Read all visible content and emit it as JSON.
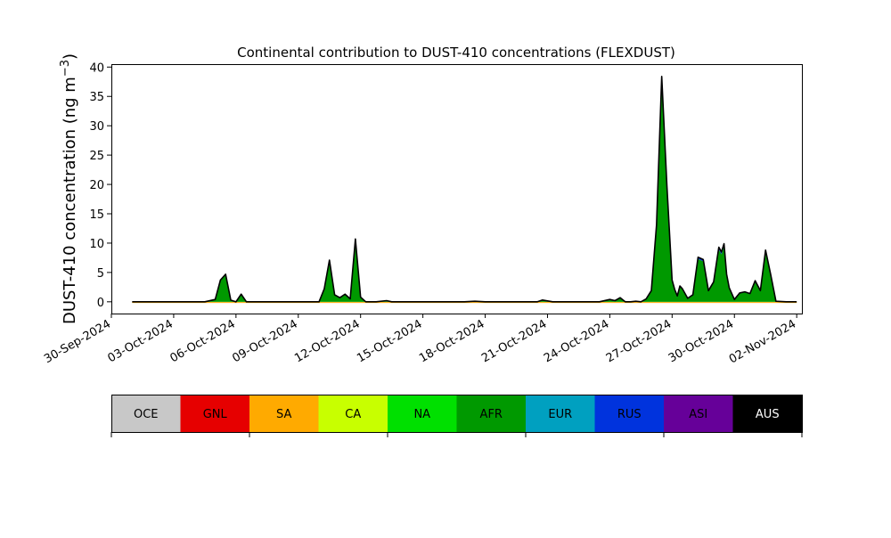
{
  "chart_data": {
    "type": "area",
    "title": "Continental contribution to DUST-410 concentrations (FLEXDUST)",
    "xlabel": "",
    "ylabel": "DUST-410 concentration (ng m",
    "ylabel_superscript": "−3",
    "ylabel_close": ")",
    "xlim": [
      "2024-09-30T00:00",
      "2024-11-02T06:00"
    ],
    "ylim": [
      -2,
      40.5
    ],
    "x_ticks": [
      "30-Sep-2024",
      "03-Oct-2024",
      "06-Oct-2024",
      "09-Oct-2024",
      "12-Oct-2024",
      "15-Oct-2024",
      "18-Oct-2024",
      "21-Oct-2024",
      "24-Oct-2024",
      "27-Oct-2024",
      "30-Oct-2024",
      "02-Nov-2024"
    ],
    "y_ticks": [
      0,
      5,
      10,
      15,
      20,
      25,
      30,
      35,
      40
    ],
    "grid": false,
    "legend": {
      "placement": "below",
      "entries": [
        {
          "label": "OCE",
          "color": "#c8c8c8",
          "text_color": "#000000"
        },
        {
          "label": "GNL",
          "color": "#e60000",
          "text_color": "#000000"
        },
        {
          "label": "SA",
          "color": "#ffaa00",
          "text_color": "#000000"
        },
        {
          "label": "CA",
          "color": "#c8ff00",
          "text_color": "#000000"
        },
        {
          "label": "NA",
          "color": "#00e000",
          "text_color": "#000000"
        },
        {
          "label": "AFR",
          "color": "#009900",
          "text_color": "#000000"
        },
        {
          "label": "EUR",
          "color": "#00a0c0",
          "text_color": "#000000"
        },
        {
          "label": "RUS",
          "color": "#0033dd",
          "text_color": "#000000"
        },
        {
          "label": "ASI",
          "color": "#660099",
          "text_color": "#000000"
        },
        {
          "label": "AUS",
          "color": "#000000",
          "text_color": "#ffffff"
        }
      ]
    },
    "x": [
      "2024-10-01T00:00",
      "2024-10-04T12:00",
      "2024-10-05T00:00",
      "2024-10-05T06:00",
      "2024-10-05T12:00",
      "2024-10-05T18:00",
      "2024-10-06T00:00",
      "2024-10-06T06:00",
      "2024-10-06T12:00",
      "2024-10-06T18:00",
      "2024-10-07T00:00",
      "2024-10-10T00:00",
      "2024-10-10T06:00",
      "2024-10-10T12:00",
      "2024-10-10T18:00",
      "2024-10-11T00:00",
      "2024-10-11T06:00",
      "2024-10-11T12:00",
      "2024-10-11T18:00",
      "2024-10-12T00:00",
      "2024-10-12T06:00",
      "2024-10-12T12:00",
      "2024-10-12T18:00",
      "2024-10-13T06:00",
      "2024-10-13T12:00",
      "2024-10-14T00:00",
      "2024-10-17T00:00",
      "2024-10-17T12:00",
      "2024-10-18T00:00",
      "2024-10-20T12:00",
      "2024-10-20T18:00",
      "2024-10-21T06:00",
      "2024-10-21T18:00",
      "2024-10-22T06:00",
      "2024-10-22T18:00",
      "2024-10-23T12:00",
      "2024-10-24T00:00",
      "2024-10-24T06:00",
      "2024-10-24T12:00",
      "2024-10-24T18:00",
      "2024-10-25T00:00",
      "2024-10-25T06:00",
      "2024-10-25T12:00",
      "2024-10-25T18:00",
      "2024-10-26T00:00",
      "2024-10-26T06:00",
      "2024-10-26T12:00",
      "2024-10-26T18:00",
      "2024-10-27T00:00",
      "2024-10-27T03:00",
      "2024-10-27T06:00",
      "2024-10-27T09:00",
      "2024-10-27T12:00",
      "2024-10-27T18:00",
      "2024-10-28T00:00",
      "2024-10-28T06:00",
      "2024-10-28T12:00",
      "2024-10-28T18:00",
      "2024-10-29T00:00",
      "2024-10-29T06:00",
      "2024-10-29T09:00",
      "2024-10-29T12:00",
      "2024-10-29T15:00",
      "2024-10-29T18:00",
      "2024-10-30T00:00",
      "2024-10-30T06:00",
      "2024-10-30T12:00",
      "2024-10-30T18:00",
      "2024-10-31T00:00",
      "2024-10-31T06:00",
      "2024-10-31T12:00",
      "2024-10-31T18:00",
      "2024-11-01T00:00",
      "2024-11-01T12:00",
      "2024-11-02T00:00"
    ],
    "series": [
      {
        "color": "#c8c8c8",
        "values": [
          0,
          0,
          0,
          0,
          0,
          0,
          0,
          0,
          0,
          0,
          0,
          0,
          0,
          0,
          0,
          0,
          0,
          0,
          0,
          0,
          0,
          0,
          0,
          0,
          0,
          0,
          0,
          0,
          0,
          0,
          0,
          0,
          0,
          0,
          0,
          0,
          0,
          0,
          0,
          0,
          0,
          0,
          0,
          0,
          0,
          0,
          0,
          0,
          0,
          0,
          0,
          0,
          0,
          0,
          0,
          0,
          0,
          0,
          0,
          0,
          0,
          0,
          0,
          0,
          0,
          0,
          0,
          0,
          0,
          0,
          0,
          0,
          0,
          0,
          0
        ]
      },
      {
        "color": "#e60000",
        "values": [
          0,
          0,
          0,
          0,
          0,
          0,
          0,
          0,
          0,
          0,
          0,
          0,
          0,
          0,
          0,
          0,
          0,
          0,
          0,
          0,
          0,
          0,
          0,
          0,
          0,
          0,
          0,
          0,
          0,
          0,
          0,
          0,
          0,
          0,
          0,
          0,
          0,
          0,
          0,
          0,
          0,
          0,
          0,
          0,
          0,
          0,
          0,
          0,
          0,
          0,
          0,
          0,
          0,
          0,
          0,
          0,
          0,
          0,
          0,
          0,
          0,
          0,
          0,
          0,
          0,
          0,
          0,
          0,
          0,
          0,
          0,
          0,
          0,
          0,
          0
        ]
      },
      {
        "color": "#ffaa00",
        "values": [
          0,
          0,
          0,
          0,
          0,
          0,
          0,
          0,
          0,
          0,
          0,
          0,
          0,
          0,
          0,
          0,
          0,
          0,
          0,
          0,
          0,
          0,
          0,
          0,
          0,
          0,
          0,
          0,
          0,
          0,
          0,
          0,
          0,
          0,
          0,
          0,
          0,
          0,
          0,
          0,
          0,
          0,
          0,
          0,
          0,
          0,
          0,
          0,
          0,
          0,
          0,
          0,
          0,
          0,
          0,
          0,
          0,
          0,
          0,
          0,
          0,
          0,
          0,
          0,
          0,
          0,
          0,
          0,
          0,
          0,
          0,
          0,
          0,
          0,
          0
        ]
      },
      {
        "color": "#c8ff00",
        "values": [
          0,
          0,
          0,
          0,
          0,
          0,
          0,
          0,
          0,
          0,
          0,
          0,
          0,
          0,
          0,
          0,
          0,
          0,
          0,
          0,
          0,
          0,
          0,
          0,
          0,
          0,
          0,
          0,
          0,
          0,
          0,
          0,
          0,
          0,
          0,
          0,
          0,
          0,
          0,
          0,
          0,
          0,
          0,
          0,
          0,
          0,
          0,
          0,
          0,
          0,
          0,
          0,
          0,
          0,
          0,
          0,
          0,
          0,
          0,
          0,
          0,
          0,
          0,
          0,
          0,
          0,
          0,
          0,
          0,
          0,
          0,
          0,
          0,
          0,
          0
        ]
      },
      {
        "color": "#00e000",
        "values": [
          0,
          0,
          0,
          0,
          0,
          0,
          0,
          0,
          0,
          0,
          0,
          0,
          0,
          0,
          0,
          0,
          0,
          0,
          0,
          0,
          0,
          0,
          0,
          0,
          0,
          0,
          0,
          0,
          0,
          0,
          0,
          0,
          0,
          0,
          0,
          0,
          0,
          0,
          0,
          0,
          0,
          0,
          0,
          0,
          0,
          0,
          0,
          0,
          0,
          0,
          0,
          0,
          0,
          0,
          0,
          0,
          0,
          0,
          0,
          0,
          0,
          0,
          0,
          0,
          0,
          0,
          0,
          0,
          0,
          0,
          0,
          0,
          0,
          0,
          0
        ]
      },
      {
        "color": "#009900",
        "values": [
          0,
          0,
          0.4,
          3.6,
          4.6,
          0.3,
          0,
          1.3,
          0,
          0,
          0,
          0,
          2.1,
          6.8,
          1.2,
          0.7,
          1.3,
          0.5,
          10.3,
          0.8,
          0,
          0,
          0,
          0.2,
          0,
          0,
          0,
          0.1,
          0,
          0,
          0.3,
          0,
          0,
          0,
          0,
          0,
          0.4,
          0.2,
          0.7,
          0,
          0,
          0.1,
          0,
          0.5,
          1.8,
          12.5,
          37,
          19,
          3.5,
          2,
          1,
          2.6,
          2.1,
          0.6,
          1.2,
          7.3,
          6.9,
          1.8,
          3.3,
          8.9,
          8.1,
          9.5,
          4.5,
          2.3,
          0.4,
          1.4,
          1.6,
          1.3,
          3.4,
          1.8,
          8.3,
          4.4,
          0.1,
          0,
          0
        ]
      },
      {
        "color": "#00a0c0",
        "values": [
          0,
          0,
          0,
          0,
          0,
          0,
          0,
          0,
          0,
          0,
          0,
          0,
          0,
          0,
          0,
          0,
          0,
          0,
          0,
          0,
          0,
          0,
          0,
          0,
          0,
          0,
          0,
          0,
          0,
          0,
          0,
          0,
          0,
          0,
          0,
          0,
          0,
          0,
          0,
          0,
          0,
          0,
          0,
          0,
          0,
          0,
          0,
          0,
          0,
          0,
          0,
          0,
          0,
          0,
          0,
          0,
          0,
          0,
          0,
          0,
          0,
          0,
          0,
          0,
          0,
          0,
          0,
          0,
          0,
          0,
          0,
          0,
          0,
          0,
          0
        ]
      },
      {
        "color": "#0033dd",
        "values": [
          0,
          0,
          0,
          0.1,
          0.1,
          0,
          0,
          0,
          0,
          0,
          0,
          0,
          0.1,
          0.3,
          0,
          0,
          0,
          0,
          0.4,
          0,
          0,
          0,
          0,
          0,
          0,
          0,
          0,
          0,
          0,
          0,
          0,
          0,
          0,
          0,
          0,
          0,
          0,
          0,
          0,
          0,
          0,
          0,
          0,
          0,
          0.1,
          0.6,
          1.4,
          0.8,
          0.2,
          0.1,
          0,
          0.1,
          0.1,
          0,
          0,
          0.3,
          0.3,
          0.1,
          0.1,
          0.4,
          0.4,
          0.4,
          0.2,
          0.1,
          0,
          0.1,
          0.1,
          0.1,
          0.2,
          0.1,
          0.5,
          0.2,
          0,
          0,
          0
        ]
      },
      {
        "color": "#660099",
        "values": [
          0,
          0,
          0,
          0,
          0,
          0,
          0,
          0,
          0,
          0,
          0,
          0,
          0,
          0,
          0,
          0,
          0,
          0,
          0,
          0,
          0,
          0,
          0,
          0,
          0,
          0,
          0,
          0,
          0,
          0,
          0,
          0,
          0,
          0,
          0,
          0,
          0,
          0,
          0,
          0,
          0,
          0,
          0,
          0,
          0,
          0,
          0,
          0,
          0,
          0,
          0,
          0,
          0,
          0,
          0,
          0,
          0,
          0,
          0,
          0,
          0,
          0,
          0,
          0,
          0,
          0,
          0,
          0,
          0,
          0,
          0,
          0,
          0,
          0,
          0
        ]
      },
      {
        "color": "#000000",
        "values": [
          0,
          0,
          0,
          0,
          0,
          0,
          0,
          0,
          0,
          0,
          0,
          0,
          0,
          0,
          0,
          0,
          0,
          0,
          0,
          0,
          0,
          0,
          0,
          0,
          0,
          0,
          0,
          0,
          0,
          0,
          0,
          0,
          0,
          0,
          0,
          0,
          0,
          0,
          0,
          0,
          0,
          0,
          0,
          0,
          0,
          0,
          0,
          0,
          0,
          0,
          0,
          0,
          0,
          0,
          0,
          0,
          0,
          0,
          0,
          0,
          0,
          0,
          0,
          0,
          0,
          0,
          0,
          0,
          0,
          0,
          0,
          0,
          0,
          0,
          0
        ]
      }
    ]
  }
}
